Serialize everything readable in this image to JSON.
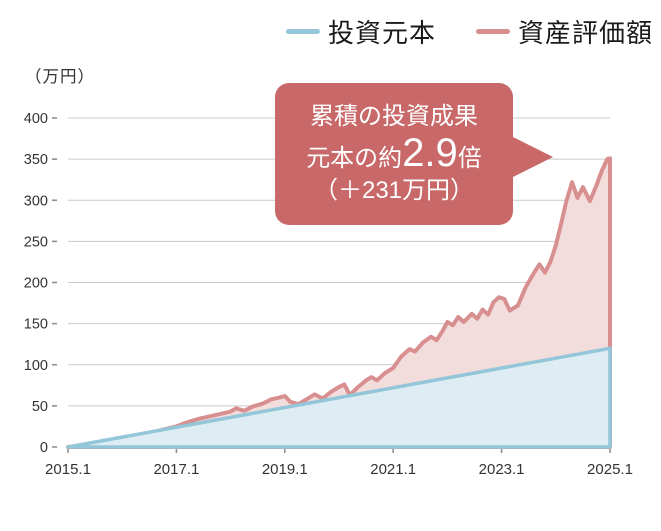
{
  "legend": {
    "items": [
      {
        "label": "投資元本",
        "color": "#93c6d8"
      },
      {
        "label": "資産評価額",
        "color": "#d88f8f"
      }
    ]
  },
  "y_axis_unit": "（万円）",
  "callout": {
    "line1": "累積の投資成果",
    "line2_prefix": "元本の約",
    "line2_big": "2.9",
    "line2_suffix": "倍",
    "line3": "（＋231万円）",
    "bg_color": "#c96868"
  },
  "chart_data": {
    "type": "area",
    "title": "",
    "xlabel": "",
    "ylabel": "万円",
    "xlim": [
      0,
      10
    ],
    "ylim": [
      0,
      400
    ],
    "grid": true,
    "legend_position": "top-right",
    "x_ticks": [
      "2015.1",
      "2017.1",
      "2019.1",
      "2021.1",
      "2023.1",
      "2025.1"
    ],
    "x_tick_positions": [
      0,
      2,
      4,
      6,
      8,
      10
    ],
    "y_ticks": [
      0,
      50,
      100,
      150,
      200,
      250,
      300,
      350,
      400
    ],
    "series": [
      {
        "name": "投資元本",
        "color": "#93c6d8",
        "fill": "#ddedf3",
        "x": [
          0,
          10
        ],
        "values": [
          0,
          120
        ]
      },
      {
        "name": "資産評価額",
        "color": "#d88f8f",
        "fill": "#f3dcdc",
        "x": [
          0,
          0.25,
          0.5,
          0.75,
          1.0,
          1.25,
          1.5,
          1.75,
          2.0,
          2.2,
          2.4,
          2.6,
          2.8,
          3.0,
          3.1,
          3.25,
          3.4,
          3.6,
          3.75,
          3.9,
          4.0,
          4.1,
          4.25,
          4.4,
          4.55,
          4.7,
          4.85,
          5.0,
          5.1,
          5.2,
          5.35,
          5.5,
          5.6,
          5.7,
          5.85,
          6.0,
          6.15,
          6.3,
          6.4,
          6.55,
          6.7,
          6.8,
          6.9,
          7.0,
          7.1,
          7.2,
          7.3,
          7.45,
          7.55,
          7.65,
          7.75,
          7.85,
          7.95,
          8.05,
          8.15,
          8.3,
          8.45,
          8.6,
          8.7,
          8.8,
          8.9,
          9.0,
          9.1,
          9.2,
          9.3,
          9.4,
          9.5,
          9.63,
          9.75,
          9.85,
          9.95,
          10
        ],
        "values": [
          0,
          2,
          5,
          8,
          11,
          14,
          17,
          21,
          25,
          30,
          34,
          37,
          40,
          43,
          47,
          44,
          49,
          53,
          58,
          60,
          62,
          55,
          52,
          58,
          64,
          59,
          67,
          73,
          76,
          63,
          73,
          81,
          85,
          81,
          90,
          96,
          110,
          119,
          116,
          127,
          134,
          130,
          140,
          152,
          148,
          158,
          152,
          162,
          156,
          167,
          161,
          176,
          182,
          180,
          166,
          172,
          195,
          212,
          222,
          212,
          225,
          245,
          272,
          300,
          322,
          303,
          316,
          299,
          318,
          336,
          350,
          351
        ]
      }
    ]
  }
}
